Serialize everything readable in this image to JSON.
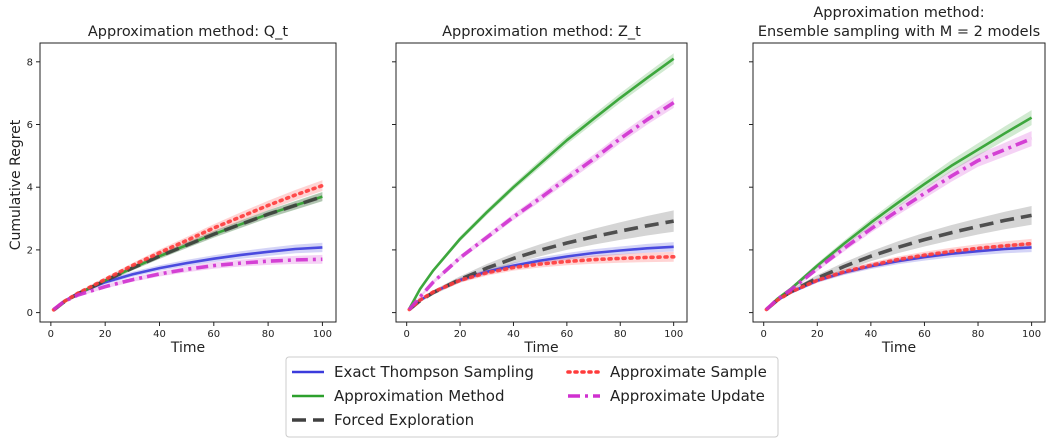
{
  "figure": {
    "ylabel": "Cumulative Regret",
    "legend": {
      "placement": "bottom-center",
      "columns": 2,
      "entries": [
        {
          "label": "Exact Thompson Sampling",
          "series": "exact"
        },
        {
          "label": "Approximation Method",
          "series": "approx_method"
        },
        {
          "label": "Forced Exploration",
          "series": "forced"
        },
        {
          "label": "Approximate Sample",
          "series": "approx_sample"
        },
        {
          "label": "Approximate Update",
          "series": "approx_update"
        }
      ]
    }
  },
  "styles": {
    "exact": {
      "color": "#3b3bdc",
      "dash": "solid"
    },
    "approx_method": {
      "color": "#2ca02c",
      "dash": "solid"
    },
    "forced": {
      "color": "#404040",
      "dash": "dashed"
    },
    "approx_sample": {
      "color": "#ff3b3b",
      "dash": "dotted"
    },
    "approx_update": {
      "color": "#d030d0",
      "dash": "dashdot"
    }
  },
  "chart_data": [
    {
      "type": "line",
      "title_lines": [
        "Approximation method: Q_t"
      ],
      "xlabel": "Time",
      "xlim": [
        -4,
        105
      ],
      "ylim": [
        -0.3,
        8.6
      ],
      "xticks": [
        0,
        20,
        40,
        60,
        80,
        100
      ],
      "yticks": [
        0,
        2,
        4,
        6,
        8
      ],
      "grid": false,
      "x": [
        1,
        5,
        10,
        20,
        30,
        40,
        50,
        60,
        70,
        80,
        90,
        100
      ],
      "series": [
        {
          "key": "exact",
          "values": [
            0.1,
            0.37,
            0.62,
            0.97,
            1.22,
            1.42,
            1.58,
            1.72,
            1.84,
            1.94,
            2.03,
            2.08
          ],
          "band": [
            0.03,
            0.04,
            0.05,
            0.07,
            0.08,
            0.09,
            0.1,
            0.11,
            0.12,
            0.13,
            0.14,
            0.15
          ]
        },
        {
          "key": "approx_method",
          "values": [
            0.08,
            0.35,
            0.6,
            1.02,
            1.42,
            1.8,
            2.15,
            2.5,
            2.82,
            3.14,
            3.42,
            3.7
          ],
          "band": [
            0.03,
            0.04,
            0.05,
            0.06,
            0.08,
            0.09,
            0.1,
            0.11,
            0.12,
            0.13,
            0.14,
            0.15
          ]
        },
        {
          "key": "forced",
          "values": [
            0.08,
            0.35,
            0.6,
            1.02,
            1.42,
            1.8,
            2.15,
            2.5,
            2.82,
            3.14,
            3.42,
            3.7
          ],
          "band": [
            0.03,
            0.04,
            0.05,
            0.06,
            0.07,
            0.08,
            0.09,
            0.1,
            0.11,
            0.12,
            0.13,
            0.14
          ]
        },
        {
          "key": "approx_sample",
          "values": [
            0.09,
            0.36,
            0.62,
            1.06,
            1.5,
            1.91,
            2.3,
            2.7,
            3.06,
            3.42,
            3.75,
            4.05
          ],
          "band": [
            0.03,
            0.04,
            0.05,
            0.07,
            0.08,
            0.1,
            0.11,
            0.12,
            0.14,
            0.15,
            0.16,
            0.17
          ]
        },
        {
          "key": "approx_update",
          "values": [
            0.1,
            0.36,
            0.56,
            0.83,
            1.05,
            1.23,
            1.38,
            1.5,
            1.58,
            1.64,
            1.68,
            1.7
          ],
          "band": [
            0.03,
            0.04,
            0.05,
            0.06,
            0.07,
            0.08,
            0.09,
            0.1,
            0.11,
            0.12,
            0.13,
            0.14
          ]
        }
      ]
    },
    {
      "type": "line",
      "title_lines": [
        "Approximation method: Z_t"
      ],
      "xlabel": "Time",
      "xlim": [
        -4,
        105
      ],
      "ylim": [
        -0.3,
        8.6
      ],
      "xticks": [
        0,
        20,
        40,
        60,
        80,
        100
      ],
      "yticks": [
        0,
        2,
        4,
        6,
        8
      ],
      "grid": false,
      "x": [
        1,
        5,
        10,
        20,
        30,
        40,
        50,
        60,
        70,
        80,
        90,
        100
      ],
      "series": [
        {
          "key": "exact",
          "values": [
            0.1,
            0.39,
            0.65,
            1.04,
            1.3,
            1.5,
            1.66,
            1.79,
            1.9,
            1.98,
            2.05,
            2.1
          ],
          "band": [
            0.03,
            0.04,
            0.05,
            0.07,
            0.08,
            0.09,
            0.1,
            0.11,
            0.12,
            0.13,
            0.14,
            0.15
          ]
        },
        {
          "key": "approx_method",
          "values": [
            0.12,
            0.75,
            1.35,
            2.35,
            3.2,
            4.0,
            4.75,
            5.5,
            6.18,
            6.85,
            7.48,
            8.1
          ],
          "band": [
            0.04,
            0.05,
            0.06,
            0.08,
            0.09,
            0.1,
            0.12,
            0.13,
            0.14,
            0.15,
            0.16,
            0.17
          ]
        },
        {
          "key": "forced",
          "values": [
            0.1,
            0.38,
            0.64,
            1.06,
            1.42,
            1.73,
            1.99,
            2.22,
            2.42,
            2.6,
            2.77,
            2.92
          ],
          "band": [
            0.04,
            0.05,
            0.07,
            0.1,
            0.13,
            0.16,
            0.19,
            0.22,
            0.25,
            0.28,
            0.31,
            0.34
          ]
        },
        {
          "key": "approx_sample",
          "values": [
            0.1,
            0.4,
            0.66,
            1.03,
            1.27,
            1.44,
            1.55,
            1.63,
            1.69,
            1.73,
            1.76,
            1.78
          ],
          "band": [
            0.03,
            0.05,
            0.06,
            0.08,
            0.09,
            0.1,
            0.11,
            0.12,
            0.13,
            0.14,
            0.15,
            0.16
          ]
        },
        {
          "key": "approx_update",
          "values": [
            0.1,
            0.5,
            0.98,
            1.75,
            2.4,
            3.05,
            3.65,
            4.28,
            4.9,
            5.55,
            6.15,
            6.7
          ],
          "band": [
            0.04,
            0.05,
            0.06,
            0.08,
            0.09,
            0.1,
            0.12,
            0.13,
            0.14,
            0.15,
            0.16,
            0.17
          ]
        }
      ]
    },
    {
      "type": "line",
      "title_lines": [
        "Approximation method:",
        "Ensemble sampling with M = 2 models"
      ],
      "xlabel": "Time",
      "xlim": [
        -4,
        105
      ],
      "ylim": [
        -0.3,
        8.6
      ],
      "xticks": [
        0,
        20,
        40,
        60,
        80,
        100
      ],
      "yticks": [
        0,
        2,
        4,
        6,
        8
      ],
      "grid": false,
      "x": [
        1,
        5,
        10,
        20,
        30,
        40,
        50,
        60,
        70,
        80,
        90,
        100
      ],
      "series": [
        {
          "key": "exact",
          "values": [
            0.1,
            0.39,
            0.64,
            1.02,
            1.28,
            1.48,
            1.64,
            1.77,
            1.88,
            1.96,
            2.03,
            2.08
          ],
          "band": [
            0.03,
            0.04,
            0.05,
            0.07,
            0.08,
            0.09,
            0.1,
            0.11,
            0.12,
            0.13,
            0.14,
            0.15
          ]
        },
        {
          "key": "approx_method",
          "values": [
            0.1,
            0.43,
            0.75,
            1.5,
            2.2,
            2.87,
            3.5,
            4.1,
            4.68,
            5.2,
            5.72,
            6.22
          ],
          "band": [
            0.04,
            0.05,
            0.06,
            0.08,
            0.1,
            0.12,
            0.14,
            0.16,
            0.18,
            0.2,
            0.22,
            0.24
          ]
        },
        {
          "key": "forced",
          "values": [
            0.1,
            0.39,
            0.66,
            1.1,
            1.47,
            1.8,
            2.08,
            2.33,
            2.55,
            2.75,
            2.94,
            3.1
          ],
          "band": [
            0.04,
            0.05,
            0.07,
            0.1,
            0.13,
            0.16,
            0.19,
            0.22,
            0.24,
            0.26,
            0.28,
            0.3
          ]
        },
        {
          "key": "approx_sample",
          "values": [
            0.1,
            0.39,
            0.65,
            1.03,
            1.3,
            1.51,
            1.69,
            1.83,
            1.95,
            2.05,
            2.13,
            2.2
          ],
          "band": [
            0.03,
            0.04,
            0.05,
            0.07,
            0.08,
            0.09,
            0.1,
            0.11,
            0.12,
            0.13,
            0.14,
            0.15
          ]
        },
        {
          "key": "approx_update",
          "values": [
            0.1,
            0.42,
            0.72,
            1.4,
            2.05,
            2.67,
            3.25,
            3.8,
            4.35,
            4.85,
            5.2,
            5.55
          ],
          "band": [
            0.04,
            0.05,
            0.06,
            0.08,
            0.1,
            0.12,
            0.14,
            0.16,
            0.18,
            0.2,
            0.22,
            0.24
          ]
        }
      ]
    }
  ]
}
